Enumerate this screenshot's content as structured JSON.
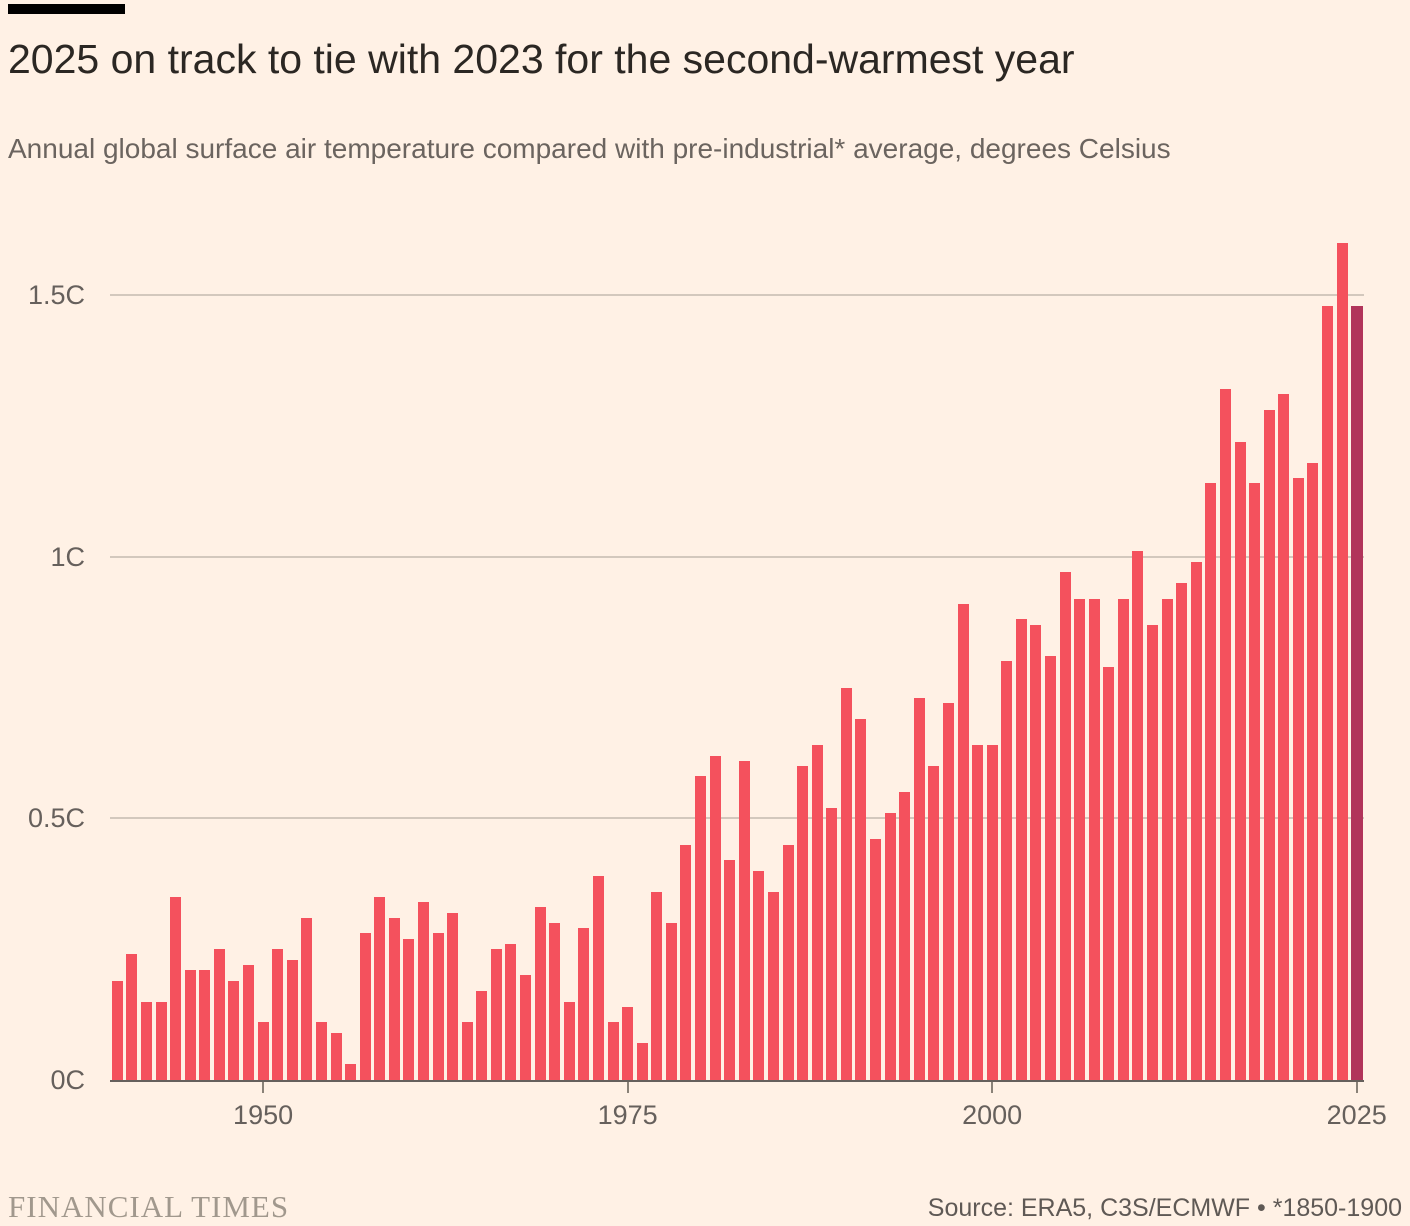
{
  "page": {
    "background_color": "#fff1e5"
  },
  "header": {
    "brand_bar_color": "#000000",
    "title": "2025 on track to tie with 2023 for the second-warmest year",
    "subtitle": "Annual global surface air temperature compared with pre-industrial* average, degrees Celsius"
  },
  "footer": {
    "brand": "FINANCIAL TIMES",
    "source": "Source: ERA5, C3S/ECMWF • *1850-1900"
  },
  "chart_data": {
    "type": "bar",
    "title": "2025 on track to tie with 2023 for the second-warmest year",
    "subtitle": "Annual global surface air temperature compared with pre-industrial* average, degrees Celsius",
    "unit": "degrees Celsius vs pre-industrial (1850-1900) average",
    "grid": "horizontal",
    "legend": "none",
    "ylim": [
      0,
      1.65
    ],
    "highlight_year": 2025,
    "colors": {
      "bar": "#f4515d",
      "highlight_bar": "#b1345a",
      "gridline": "#d3c8bd",
      "axis_line": "#66605c",
      "tick": "#8a8278",
      "label_text": "#66605c"
    },
    "y_ticks": [
      {
        "value": 0,
        "label": "0C"
      },
      {
        "value": 0.5,
        "label": "0.5C"
      },
      {
        "value": 1,
        "label": "1C"
      },
      {
        "value": 1.5,
        "label": "1.5C"
      }
    ],
    "x_ticks": [
      {
        "year": 1950,
        "label": "1950"
      },
      {
        "year": 1975,
        "label": "1975"
      },
      {
        "year": 2000,
        "label": "2000"
      },
      {
        "year": 2025,
        "label": "2025"
      }
    ],
    "x": [
      1940,
      1941,
      1942,
      1943,
      1944,
      1945,
      1946,
      1947,
      1948,
      1949,
      1950,
      1951,
      1952,
      1953,
      1954,
      1955,
      1956,
      1957,
      1958,
      1959,
      1960,
      1961,
      1962,
      1963,
      1964,
      1965,
      1966,
      1967,
      1968,
      1969,
      1970,
      1971,
      1972,
      1973,
      1974,
      1975,
      1976,
      1977,
      1978,
      1979,
      1980,
      1981,
      1982,
      1983,
      1984,
      1985,
      1986,
      1987,
      1988,
      1989,
      1990,
      1991,
      1992,
      1993,
      1994,
      1995,
      1996,
      1997,
      1998,
      1999,
      2000,
      2001,
      2002,
      2003,
      2004,
      2005,
      2006,
      2007,
      2008,
      2009,
      2010,
      2011,
      2012,
      2013,
      2014,
      2015,
      2016,
      2017,
      2018,
      2019,
      2020,
      2021,
      2022,
      2023,
      2024,
      2025
    ],
    "values": [
      0.19,
      0.24,
      0.15,
      0.15,
      0.35,
      0.21,
      0.21,
      0.25,
      0.19,
      0.22,
      0.11,
      0.25,
      0.23,
      0.31,
      0.11,
      0.09,
      0.03,
      0.28,
      0.35,
      0.31,
      0.27,
      0.34,
      0.28,
      0.32,
      0.11,
      0.17,
      0.25,
      0.26,
      0.2,
      0.33,
      0.3,
      0.15,
      0.29,
      0.39,
      0.11,
      0.14,
      0.07,
      0.36,
      0.3,
      0.45,
      0.58,
      0.62,
      0.42,
      0.61,
      0.4,
      0.36,
      0.45,
      0.6,
      0.64,
      0.52,
      0.75,
      0.69,
      0.46,
      0.51,
      0.55,
      0.73,
      0.6,
      0.72,
      0.91,
      0.64,
      0.64,
      0.8,
      0.88,
      0.87,
      0.81,
      0.97,
      0.92,
      0.92,
      0.79,
      0.92,
      1.01,
      0.87,
      0.92,
      0.95,
      0.99,
      1.14,
      1.32,
      1.22,
      1.14,
      1.28,
      1.31,
      1.15,
      1.18,
      1.48,
      1.6,
      1.48
    ]
  }
}
